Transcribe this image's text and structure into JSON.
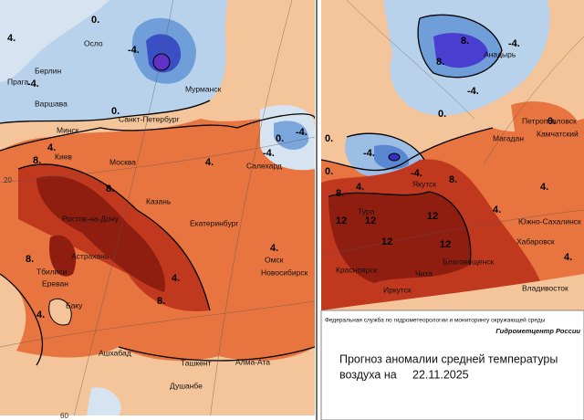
{
  "left_map": {
    "cities": [
      "Осло",
      "Берлин",
      "Прага",
      "Варшава",
      "Минск",
      "Санкт-Петербург",
      "Мурманск",
      "Киев",
      "Москва",
      "Казань",
      "Ростов-на-Дону",
      "Екатеринбург",
      "Астрахань",
      "Тбилиси",
      "Ереван",
      "Баку",
      "Омск",
      "Новосибирск",
      "Салехард",
      "Ашхабад",
      "Ташкент",
      "Алма-Ата",
      "Душанбе"
    ],
    "contour_labels": [
      "4.",
      "0.",
      "-4.",
      "-4.",
      "0.",
      "4.",
      "8.",
      "4.",
      "8.",
      "8.",
      "4.",
      "8.",
      "4.",
      "4.",
      "-4.",
      "0.",
      "-4."
    ],
    "grid_labels": [
      "20",
      "60"
    ]
  },
  "right_map": {
    "cities": [
      "Анадырь",
      "Петропавловск",
      "Камчатский",
      "Магадан",
      "Якутск",
      "Тура",
      "Южно-Сахалинск",
      "Хабаровск",
      "Благовещенск",
      "Красноярск",
      "Чита",
      "Иркутск",
      "Владивосток"
    ],
    "contour_labels": [
      "8.",
      "-4.",
      "8.",
      "-4.",
      "0.",
      "0.",
      "-4.",
      "-4.",
      "0.",
      "4.",
      "8.",
      "12",
      "12",
      "12",
      "12",
      "12",
      "8.",
      "4.",
      "4.",
      "4.",
      "0."
    ]
  },
  "footer": {
    "agency": "Федеральная служба по гидрометеорологии и мониторингу окружающей среды",
    "center": "Гидрометцентр России",
    "title_line1": "Прогноз аномалии средней температуры",
    "title_line2": "воздуха на",
    "date": "22.11.2025"
  }
}
